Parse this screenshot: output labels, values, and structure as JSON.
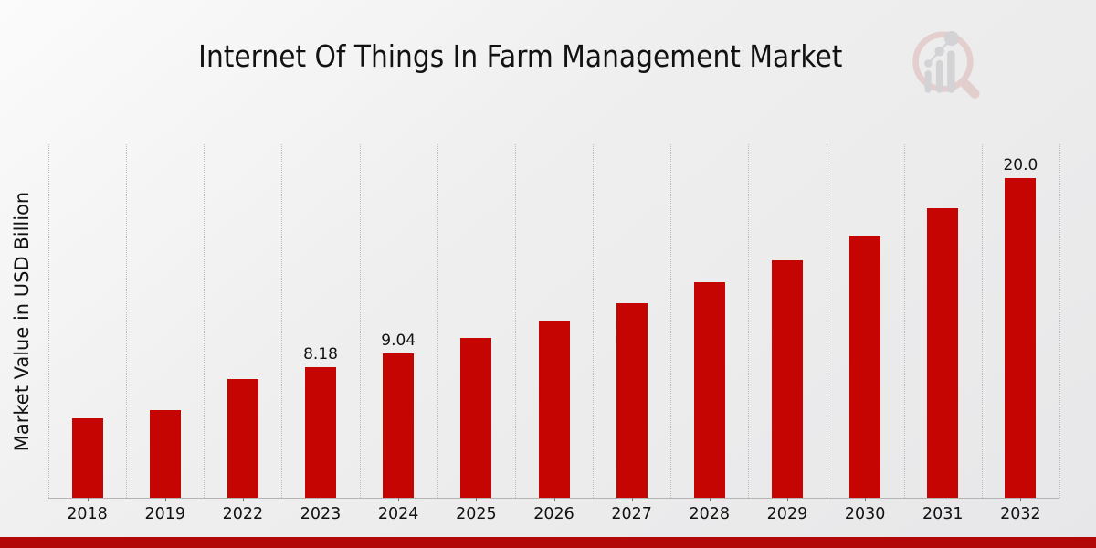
{
  "page": {
    "background_top": "#fbfbfb",
    "background_bottom": "#e5e5e7",
    "footer_band_color": "#b30808"
  },
  "watermark": {
    "icon": "magnifier-bar-chart-logo",
    "ring_color": "#ddb6b6",
    "bars_color": "#bfbfc4"
  },
  "chart_data": {
    "type": "bar",
    "title": "Internet Of Things In Farm Management Market",
    "xlabel": "",
    "ylabel": "Market Value in USD Billion",
    "categories": [
      "2018",
      "2019",
      "2022",
      "2023",
      "2024",
      "2025",
      "2026",
      "2027",
      "2028",
      "2029",
      "2030",
      "2031",
      "2032"
    ],
    "values": [
      4.96,
      5.48,
      7.4,
      8.18,
      9.04,
      9.98,
      11.03,
      12.18,
      13.45,
      14.86,
      16.41,
      18.12,
      20.0
    ],
    "point_labels": {
      "2023": "8.18",
      "2024": "9.04",
      "2032": "20.0"
    },
    "bar_color": "#c40502",
    "ylim": [
      0,
      22.15
    ],
    "grid": "vertical-dotted",
    "legend": "none"
  }
}
